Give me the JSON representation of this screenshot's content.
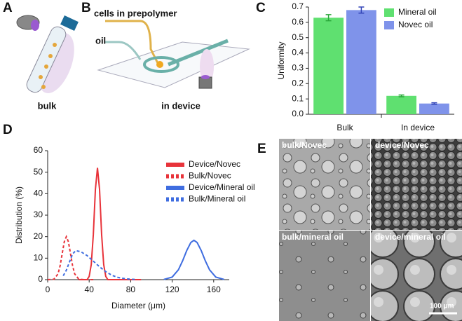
{
  "panels": [
    "A",
    "B",
    "C",
    "D",
    "E"
  ],
  "panel_a": {
    "caption": "bulk"
  },
  "panel_b": {
    "inlets": [
      "cells in prepolymer",
      "oil"
    ],
    "caption": "in device"
  },
  "chart_data": [
    {
      "type": "bar",
      "ylabel": "Uniformity",
      "categories": [
        "Bulk",
        "In device"
      ],
      "series": [
        {
          "name": "Mineral oil",
          "color": "#5fe070",
          "values": [
            0.63,
            0.12
          ],
          "errors": [
            0.02,
            0.006
          ]
        },
        {
          "name": "Novec oil",
          "color": "#7f93ea",
          "values": [
            0.68,
            0.07
          ],
          "errors": [
            0.02,
            0.005
          ]
        }
      ],
      "ylim": [
        0,
        0.7
      ],
      "yticks": [
        {
          "value": 0,
          "label": "0.0"
        },
        0.1,
        0.2,
        0.3,
        0.4,
        0.5,
        0.6,
        0.7
      ],
      "legend": "top-right"
    },
    {
      "type": "line",
      "xlabel": "Diameter (μm)",
      "ylabel": "Distribution (%)",
      "series": [
        {
          "name": "Device/Novec",
          "color": "#e8333a",
          "dash": false,
          "x": [
            30,
            38,
            40,
            42,
            44,
            46,
            48,
            50,
            52,
            54,
            56,
            58,
            70,
            90
          ],
          "values": [
            0,
            0,
            1.5,
            7,
            21,
            42,
            52,
            42,
            21,
            7,
            1.5,
            0,
            0,
            0
          ]
        },
        {
          "name": "Bulk/Novec",
          "color": "#e8333a",
          "dash": true,
          "x": [
            0,
            6,
            10,
            12,
            14,
            16,
            18,
            20,
            22,
            24,
            26,
            30,
            36,
            45
          ],
          "values": [
            0,
            0.2,
            2.7,
            6.5,
            12.1,
            17.6,
            20,
            17.6,
            12.1,
            6.5,
            2.7,
            0.2,
            0,
            0
          ]
        },
        {
          "name": "Device/Mineral oil",
          "color": "#3f6de0",
          "dash": false,
          "x": [
            112,
            120,
            126,
            130,
            134,
            138,
            141,
            144,
            148,
            152,
            156,
            162,
            170
          ],
          "values": [
            0.1,
            1.2,
            4.6,
            8.7,
            13.5,
            17.3,
            18.3,
            17.3,
            13.5,
            8.7,
            4.6,
            1.2,
            0.1
          ]
        },
        {
          "name": "Bulk/Mineral oil",
          "color": "#3f6de0",
          "dash": true,
          "x": [
            15,
            18,
            21,
            24,
            27,
            32,
            38,
            44,
            50,
            56,
            62,
            68,
            74,
            80,
            85
          ],
          "values": [
            1.8,
            4.4,
            8.2,
            11.9,
            13.5,
            13,
            11.2,
            8.6,
            6,
            3.7,
            2,
            1,
            0.5,
            0.2,
            0.1
          ]
        }
      ],
      "xlim": [
        0,
        175
      ],
      "xticks": [
        0,
        40,
        80,
        120,
        160
      ],
      "ylim": [
        0,
        60
      ],
      "yticks": [
        0,
        10,
        20,
        30,
        40,
        50,
        60
      ],
      "legend": "top-right"
    }
  ],
  "panel_e": {
    "images": [
      "bulk/Novec",
      "device/Novec",
      "bulk/mineral oil",
      "device/mineral oil"
    ],
    "scale_bar": "100 μm"
  }
}
